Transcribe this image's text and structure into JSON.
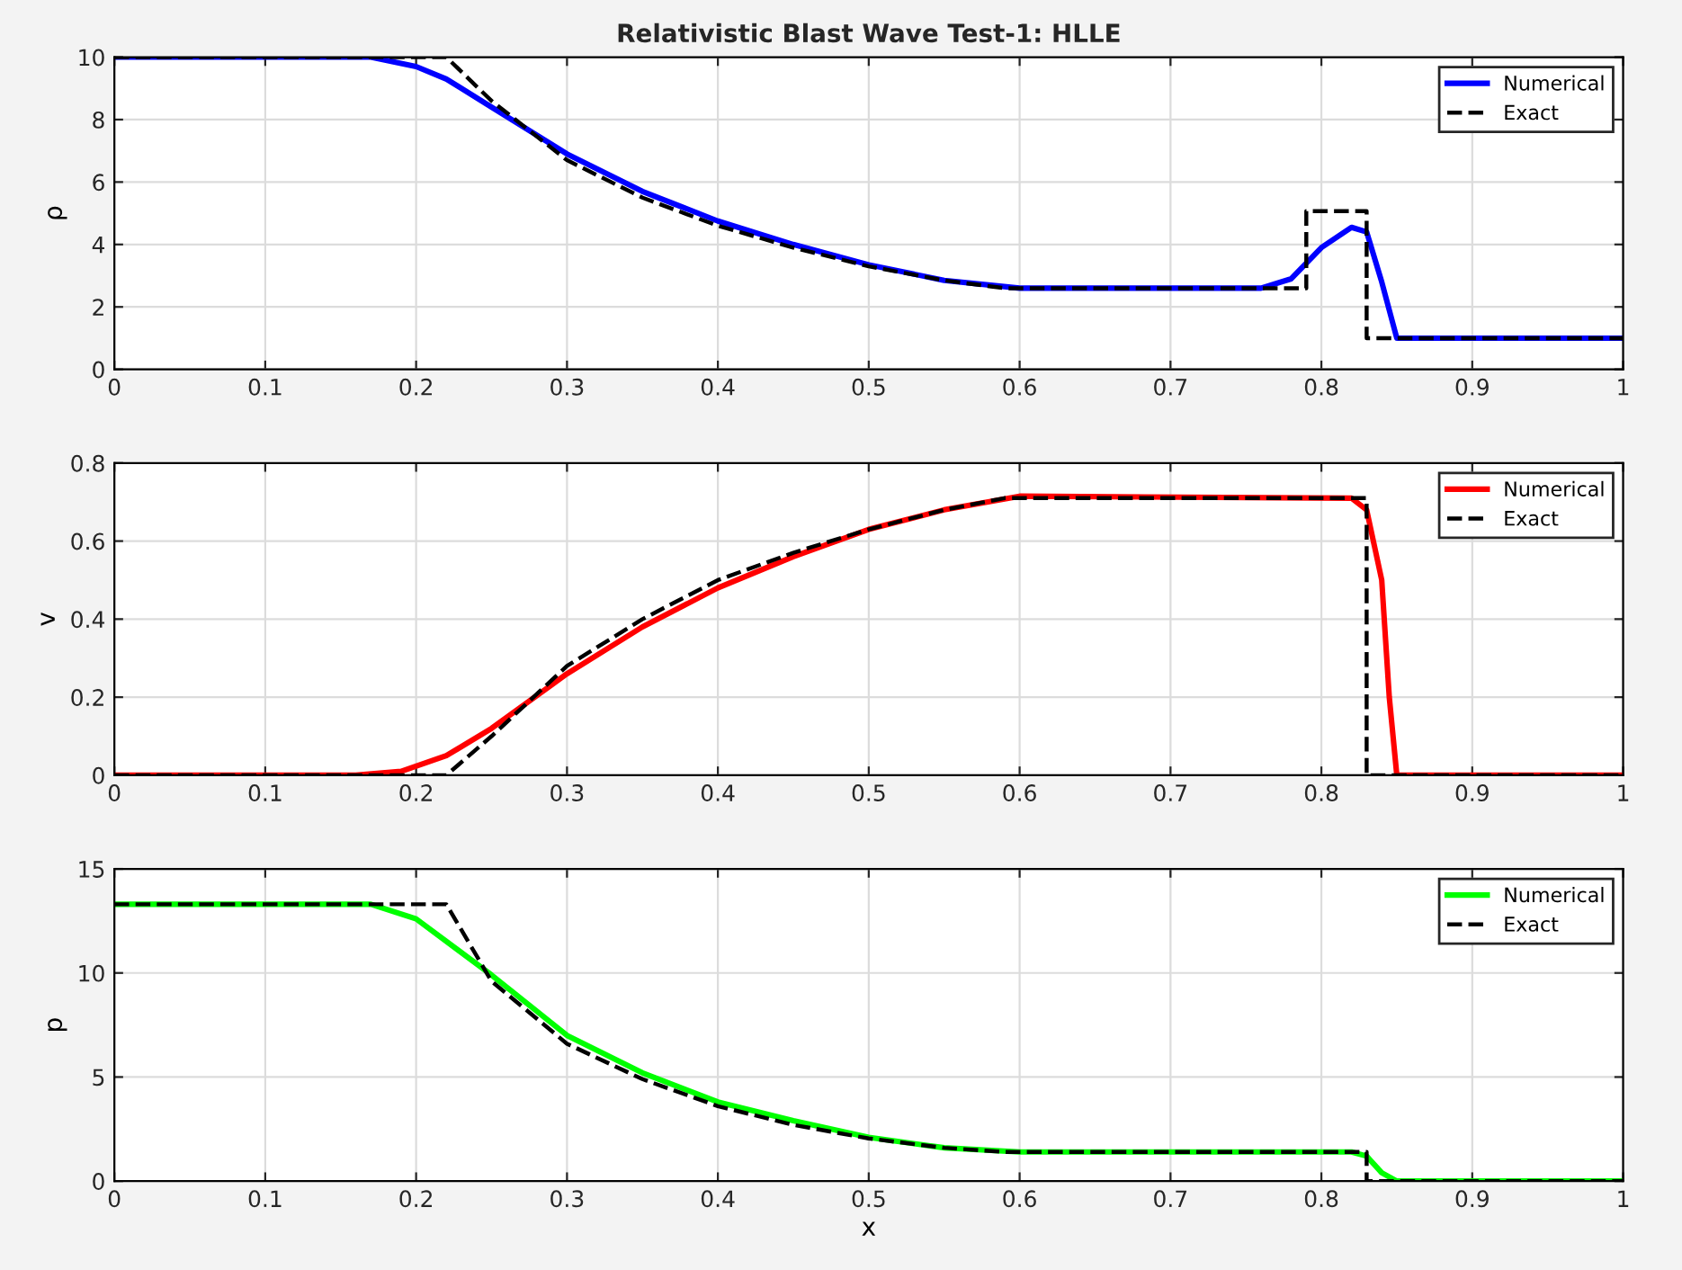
{
  "chart_data": [
    {
      "type": "line",
      "title": "Relativistic Blast Wave Test-1: HLLE",
      "ylabel": "ρ",
      "xlim": [
        0,
        1
      ],
      "xticks": [
        0,
        0.1,
        0.2,
        0.3,
        0.4,
        0.5,
        0.6,
        0.7,
        0.8,
        0.9,
        1
      ],
      "ylim": [
        0,
        10
      ],
      "yticks": [
        0,
        2,
        4,
        6,
        8,
        10
      ],
      "grid": true,
      "legend": "top right",
      "series": [
        {
          "name": "Numerical",
          "color": "#0000ff",
          "line_style": "solid",
          "x": [
            0,
            0.17,
            0.2,
            0.22,
            0.25,
            0.3,
            0.35,
            0.4,
            0.45,
            0.5,
            0.55,
            0.6,
            0.76,
            0.78,
            0.8,
            0.82,
            0.83,
            0.84,
            0.85,
            1
          ],
          "values": [
            10,
            10,
            9.7,
            9.3,
            8.4,
            6.9,
            5.7,
            4.75,
            4.0,
            3.35,
            2.85,
            2.6,
            2.6,
            2.9,
            3.9,
            4.55,
            4.4,
            2.8,
            1.0,
            1.0
          ]
        },
        {
          "name": "Exact",
          "color": "#000000",
          "line_style": "dashed",
          "x": [
            0,
            0.22,
            0.25,
            0.3,
            0.35,
            0.4,
            0.45,
            0.5,
            0.55,
            0.59,
            0.79,
            0.79,
            0.83,
            0.83,
            1
          ],
          "values": [
            10,
            10,
            8.6,
            6.7,
            5.5,
            4.6,
            3.9,
            3.3,
            2.85,
            2.6,
            2.6,
            5.07,
            5.07,
            1.0,
            1.0
          ]
        }
      ]
    },
    {
      "type": "line",
      "ylabel": "v",
      "xlim": [
        0,
        1
      ],
      "xticks": [
        0,
        0.1,
        0.2,
        0.3,
        0.4,
        0.5,
        0.6,
        0.7,
        0.8,
        0.9,
        1
      ],
      "ylim": [
        0,
        0.8
      ],
      "yticks": [
        0,
        0.2,
        0.4,
        0.6,
        0.8
      ],
      "grid": true,
      "legend": "top right",
      "series": [
        {
          "name": "Numerical",
          "color": "#ff0000",
          "line_style": "solid",
          "x": [
            0,
            0.16,
            0.19,
            0.22,
            0.25,
            0.3,
            0.35,
            0.4,
            0.45,
            0.5,
            0.55,
            0.6,
            0.82,
            0.83,
            0.84,
            0.845,
            0.85,
            1
          ],
          "values": [
            0,
            0,
            0.01,
            0.05,
            0.12,
            0.26,
            0.38,
            0.48,
            0.56,
            0.63,
            0.68,
            0.715,
            0.71,
            0.68,
            0.5,
            0.2,
            0,
            0
          ]
        },
        {
          "name": "Exact",
          "color": "#000000",
          "line_style": "dashed",
          "x": [
            0,
            0.22,
            0.25,
            0.3,
            0.35,
            0.4,
            0.45,
            0.5,
            0.55,
            0.59,
            0.83,
            0.83,
            1
          ],
          "values": [
            0,
            0,
            0.1,
            0.28,
            0.4,
            0.5,
            0.57,
            0.63,
            0.68,
            0.71,
            0.71,
            0,
            0
          ]
        }
      ]
    },
    {
      "type": "line",
      "ylabel": "p",
      "xlabel": "x",
      "xlim": [
        0,
        1
      ],
      "xticks": [
        0,
        0.1,
        0.2,
        0.3,
        0.4,
        0.5,
        0.6,
        0.7,
        0.8,
        0.9,
        1
      ],
      "ylim": [
        0,
        15
      ],
      "yticks": [
        0,
        5,
        10,
        15
      ],
      "grid": true,
      "legend": "top right",
      "series": [
        {
          "name": "Numerical",
          "color": "#00ff00",
          "line_style": "solid",
          "x": [
            0,
            0.17,
            0.2,
            0.25,
            0.3,
            0.35,
            0.4,
            0.45,
            0.5,
            0.55,
            0.6,
            0.82,
            0.83,
            0.84,
            0.85,
            1
          ],
          "values": [
            13.3,
            13.3,
            12.6,
            9.9,
            7.0,
            5.2,
            3.8,
            2.9,
            2.1,
            1.6,
            1.4,
            1.4,
            1.2,
            0.4,
            0,
            0
          ]
        },
        {
          "name": "Exact",
          "color": "#000000",
          "line_style": "dashed",
          "x": [
            0,
            0.22,
            0.25,
            0.3,
            0.35,
            0.4,
            0.45,
            0.5,
            0.55,
            0.59,
            0.83,
            0.83,
            1
          ],
          "values": [
            13.3,
            13.3,
            9.6,
            6.6,
            4.9,
            3.6,
            2.7,
            2.05,
            1.6,
            1.4,
            1.4,
            0,
            0
          ]
        }
      ]
    }
  ]
}
